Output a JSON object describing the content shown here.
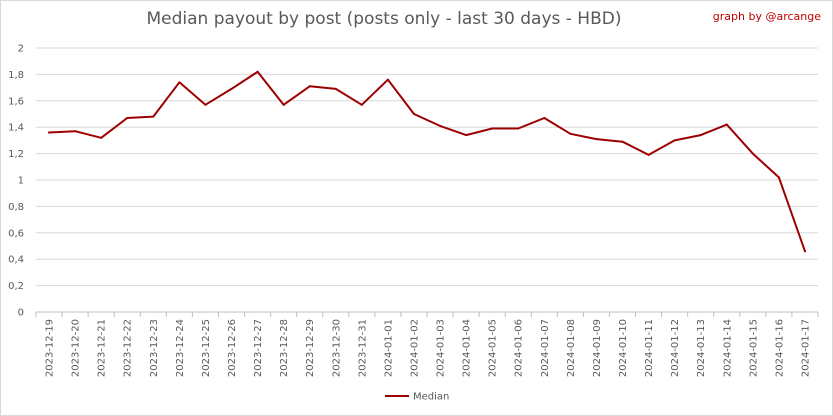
{
  "credit": "graph by @arcange",
  "chart_data": {
    "type": "line",
    "title": "Median payout by post (posts only - last 30 days - HBD)",
    "xlabel": "",
    "ylabel": "",
    "ylim": [
      0,
      2
    ],
    "yticks": [
      "0",
      "0,2",
      "0,4",
      "0,6",
      "0,8",
      "1",
      "1,2",
      "1,4",
      "1,6",
      "1,8",
      "2"
    ],
    "grid": true,
    "legend_position": "bottom",
    "categories": [
      "2023-12-19",
      "2023-12-20",
      "2023-12-21",
      "2023-12-22",
      "2023-12-23",
      "2023-12-24",
      "2023-12-25",
      "2023-12-26",
      "2023-12-27",
      "2023-12-28",
      "2023-12-29",
      "2023-12-30",
      "2023-12-31",
      "2024-01-01",
      "2024-01-02",
      "2024-01-03",
      "2024-01-04",
      "2024-01-05",
      "2024-01-06",
      "2024-01-07",
      "2024-01-08",
      "2024-01-09",
      "2024-01-10",
      "2024-01-11",
      "2024-01-12",
      "2024-01-13",
      "2024-01-14",
      "2024-01-15",
      "2024-01-16",
      "2024-01-17"
    ],
    "series": [
      {
        "name": "Median",
        "color": "#9c0000",
        "values": [
          1.36,
          1.37,
          1.32,
          1.47,
          1.48,
          1.74,
          1.57,
          1.69,
          1.82,
          1.57,
          1.71,
          1.69,
          1.57,
          1.76,
          1.5,
          1.41,
          1.34,
          1.39,
          1.39,
          1.47,
          1.35,
          1.31,
          1.29,
          1.19,
          1.3,
          1.34,
          1.42,
          1.2,
          1.02,
          0.46
        ]
      }
    ]
  }
}
